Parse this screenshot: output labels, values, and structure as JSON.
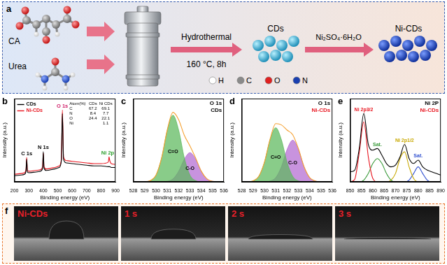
{
  "schematic": {
    "panel": "a",
    "reactants": [
      "CA",
      "Urea"
    ],
    "step": "Hydrothermal",
    "condition": "160 °C, 8h",
    "intermediate": "CDs",
    "reagent": "Ni₂SO₄·6H₂O",
    "product": "Ni-CDs",
    "atom_legend": [
      {
        "symbol": "H",
        "color": "#ffffff"
      },
      {
        "symbol": "C",
        "color": "#8a8a8a"
      },
      {
        "symbol": "O",
        "color": "#e02020"
      },
      {
        "symbol": "N",
        "color": "#1a3fb0"
      }
    ]
  },
  "chart_data": [
    {
      "panel": "b",
      "type": "line",
      "x": [
        200,
        250,
        270,
        280,
        285,
        290,
        300,
        350,
        380,
        395,
        400,
        405,
        420,
        480,
        510,
        525,
        532,
        540,
        560,
        600,
        700,
        750,
        800,
        850,
        855,
        860,
        870,
        900
      ],
      "series": [
        {
          "name": "CDs",
          "color": "#000000",
          "values": [
            8,
            9,
            10,
            14,
            30,
            13,
            12,
            13,
            14,
            18,
            40,
            18,
            15,
            17,
            19,
            28,
            90,
            30,
            25,
            24,
            22,
            21,
            21,
            20,
            20,
            20,
            19,
            19
          ]
        },
        {
          "name": "Ni-CDs",
          "color": "#e8141e",
          "values": [
            10,
            11,
            12,
            16,
            32,
            15,
            14,
            15,
            16,
            20,
            38,
            20,
            17,
            19,
            21,
            30,
            95,
            33,
            28,
            27,
            25,
            24,
            24,
            26,
            33,
            28,
            24,
            23
          ]
        }
      ],
      "xlim": [
        200,
        900
      ],
      "xticks": [
        200,
        300,
        400,
        500,
        600,
        700,
        800,
        900
      ],
      "ylim": [
        0,
        110
      ],
      "x_label": "Binding energy (eV)",
      "y_label": "Intensity (a.u.)",
      "tick_labels": "x",
      "grid": false,
      "legend": "upper left",
      "peak_labels": [
        {
          "text": "C 1s",
          "x": 285,
          "color": "#000000"
        },
        {
          "text": "N 1s",
          "x": 400,
          "color": "#000000"
        },
        {
          "text": "O 1s",
          "x": 532,
          "color": "#d0206a"
        },
        {
          "text": "Ni 2p",
          "x": 855,
          "color": "#2a9d2a"
        }
      ],
      "table": {
        "header": [
          "Atom(%)",
          "CDs",
          "Ni CDs"
        ],
        "rows": [
          [
            "C",
            67.2,
            69.1
          ],
          [
            "N",
            8.4,
            7.7
          ],
          [
            "O",
            24.4,
            22.1
          ],
          [
            "Ni",
            null,
            1.1
          ]
        ]
      }
    },
    {
      "panel": "c",
      "type": "line",
      "title": "O 1s",
      "sample": {
        "text": "CDs",
        "color": "#000000"
      },
      "x": [
        528,
        528.5,
        529,
        529.5,
        530,
        530.5,
        531,
        531.5,
        532,
        532.5,
        533,
        533.5,
        534,
        534.5,
        535,
        535.5,
        536
      ],
      "series": [
        {
          "color": "#f5a030",
          "values": [
            0,
            0,
            0.1,
            1.4,
            8,
            28.9,
            62.6,
            83.5,
            74.6,
            55.9,
            43,
            28.5,
            12.7,
            3.5,
            0.6,
            0.1,
            0
          ]
        },
        {
          "name": "C=O",
          "type": "area",
          "color": "#5cb85c",
          "values": [
            0,
            0,
            0.1,
            1.4,
            8,
            28.8,
            62,
            80,
            62,
            28.8,
            8,
            1.4,
            0.1,
            0,
            0,
            0,
            0
          ]
        },
        {
          "name": "C-O",
          "type": "area",
          "color": "#b36ad1",
          "values": [
            0,
            0,
            0,
            0,
            0,
            0.1,
            0.6,
            3.5,
            12.6,
            27.1,
            35,
            27.1,
            12.6,
            3.5,
            0.6,
            0.1,
            0
          ]
        }
      ],
      "xlim": [
        528,
        536
      ],
      "xticks": [
        528,
        529,
        530,
        531,
        532,
        533,
        534,
        535,
        536
      ],
      "ylim": [
        0,
        100
      ],
      "x_label": "Binding energy (eV)",
      "y_label": "Intensity (a.u.)",
      "tick_labels": "x",
      "grid": false
    },
    {
      "panel": "d",
      "type": "line",
      "title": "O 1s",
      "sample": {
        "text": "Ni-CDs",
        "color": "#e8141e"
      },
      "x": [
        528,
        528.5,
        529,
        529.5,
        530,
        530.5,
        531,
        531.5,
        532,
        532.5,
        533,
        533.5,
        534,
        534.5,
        535,
        535.5,
        536
      ],
      "series": [
        {
          "color": "#f5a030",
          "values": [
            0,
            0.1,
            1.1,
            6.5,
            23.5,
            51.3,
            70,
            68.4,
            62.2,
            56.5,
            39.9,
            18.1,
            5,
            0.9,
            0.1,
            0,
            0
          ]
        },
        {
          "name": "C=O",
          "type": "area",
          "color": "#5cb85c",
          "values": [
            0,
            0.1,
            1.1,
            6.5,
            23.4,
            50.4,
            65,
            50.4,
            23.4,
            6.5,
            1.1,
            0.1,
            0,
            0,
            0,
            0,
            0
          ]
        },
        {
          "name": "C-O",
          "type": "area",
          "color": "#b36ad1",
          "values": [
            0,
            0,
            0,
            0,
            0.1,
            0.9,
            5,
            18,
            38.8,
            50,
            38.8,
            18,
            5,
            0.9,
            0.1,
            0,
            0
          ]
        }
      ],
      "xlim": [
        528,
        536
      ],
      "xticks": [
        528,
        529,
        530,
        531,
        532,
        533,
        534,
        535,
        536
      ],
      "ylim": [
        0,
        100
      ],
      "x_label": "Binding energy (eV)",
      "y_label": "Intensity (a.u.)",
      "tick_labels": "x",
      "grid": false
    },
    {
      "panel": "e",
      "type": "line",
      "title": "Ni 2P",
      "sample": {
        "text": "Ni-CDs",
        "color": "#e8141e"
      },
      "x": [
        850,
        852,
        854,
        856,
        858,
        860,
        862,
        864,
        866,
        868,
        870,
        872,
        874,
        876,
        878,
        880,
        882,
        884,
        886,
        888,
        890
      ],
      "series": [
        {
          "color": "#000000",
          "values": [
            12,
            14,
            40,
            82,
            45,
            38,
            40,
            32,
            22,
            18,
            20,
            30,
            45,
            28,
            22,
            26,
            18,
            14,
            12,
            10,
            8
          ]
        },
        {
          "name": "Ni 2p3/2",
          "color": "#e8141e",
          "values": [
            0,
            3,
            35,
            72,
            30,
            4,
            0,
            0,
            0,
            0,
            0,
            0,
            0,
            0,
            0,
            0,
            0,
            0,
            0,
            0,
            0
          ]
        },
        {
          "name": "Sat.",
          "color": "#3a9a3a",
          "values": [
            0,
            0,
            0,
            2,
            10,
            22,
            28,
            22,
            10,
            2,
            0,
            0,
            0,
            0,
            0,
            0,
            0,
            0,
            0,
            0,
            0
          ]
        },
        {
          "name": "Ni 2p1/2",
          "color": "#c8a800",
          "values": [
            0,
            0,
            0,
            0,
            0,
            0,
            0,
            0,
            0,
            2,
            10,
            28,
            36,
            18,
            4,
            0,
            0,
            0,
            0,
            0,
            0
          ]
        },
        {
          "name": "Sat.",
          "color": "#3050d0",
          "values": [
            0,
            0,
            0,
            0,
            0,
            0,
            0,
            0,
            0,
            0,
            0,
            0,
            0,
            2,
            10,
            18,
            10,
            2,
            0,
            0,
            0
          ]
        }
      ],
      "xlim": [
        850,
        890
      ],
      "xticks": [
        850,
        855,
        860,
        865,
        870,
        875,
        880,
        885,
        890
      ],
      "ylim": [
        0,
        100
      ],
      "x_label": "Binding energy (eV)",
      "y_label": "Intensity (a.u.)",
      "tick_labels": "x",
      "grid": false
    }
  ],
  "photos": {
    "panel": "f",
    "frames": [
      "Ni-CDs",
      "1 s",
      "2 s",
      "3 s"
    ]
  }
}
